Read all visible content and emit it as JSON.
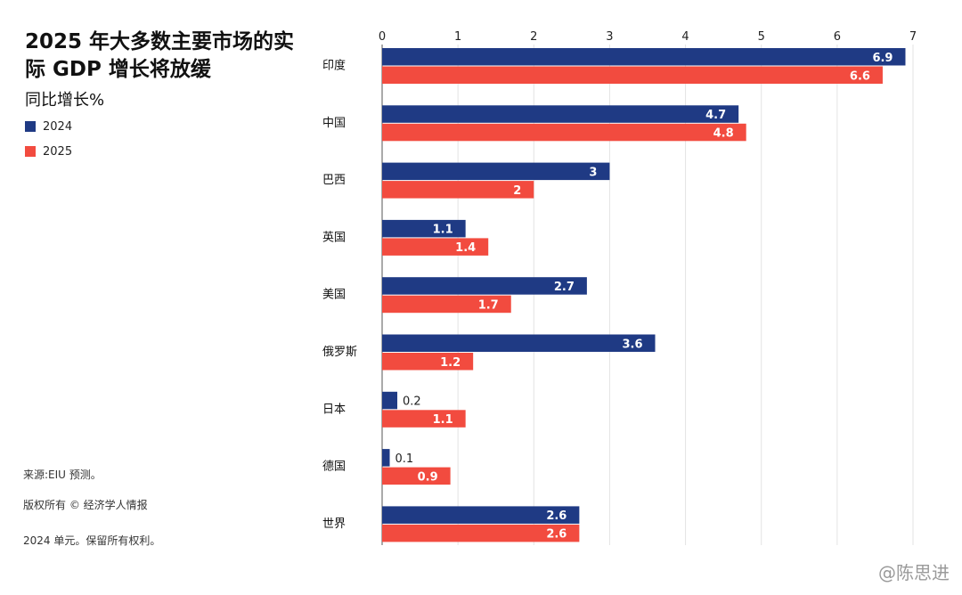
{
  "header": {
    "title": "2025 年大多数主要市场的实际 GDP 增长将放缓",
    "subtitle": "同比增长%"
  },
  "legend": {
    "items": [
      {
        "label": "2024",
        "color": "#1f3a84"
      },
      {
        "label": "2025",
        "color": "#f24b3f"
      }
    ]
  },
  "footer": {
    "source": "来源:EIU 预测。",
    "copyright": "版权所有 © 经济学人情报",
    "rights": "2024 单元。保留所有权利。"
  },
  "watermark": "@陈思进",
  "chart_data": {
    "type": "bar",
    "orientation": "horizontal",
    "categories": [
      "印度",
      "中国",
      "巴西",
      "英国",
      "美国",
      "俄罗斯",
      "日本",
      "德国",
      "世界"
    ],
    "series": [
      {
        "name": "2024",
        "color": "#1f3a84",
        "values": [
          6.9,
          4.7,
          3,
          1.1,
          2.7,
          3.6,
          0.2,
          0.1,
          2.6
        ]
      },
      {
        "name": "2025",
        "color": "#f24b3f",
        "values": [
          6.6,
          4.8,
          2,
          1.4,
          1.7,
          1.2,
          1.1,
          0.9,
          2.6
        ]
      }
    ],
    "xlim": [
      0,
      7
    ],
    "ticks": [
      0,
      1,
      2,
      3,
      4,
      5,
      6,
      7
    ],
    "tick_labels": [
      "0",
      "1",
      "2",
      "3",
      "4",
      "5",
      "6",
      "7"
    ],
    "axis_position": "top",
    "grid": true,
    "data_labels": true
  }
}
